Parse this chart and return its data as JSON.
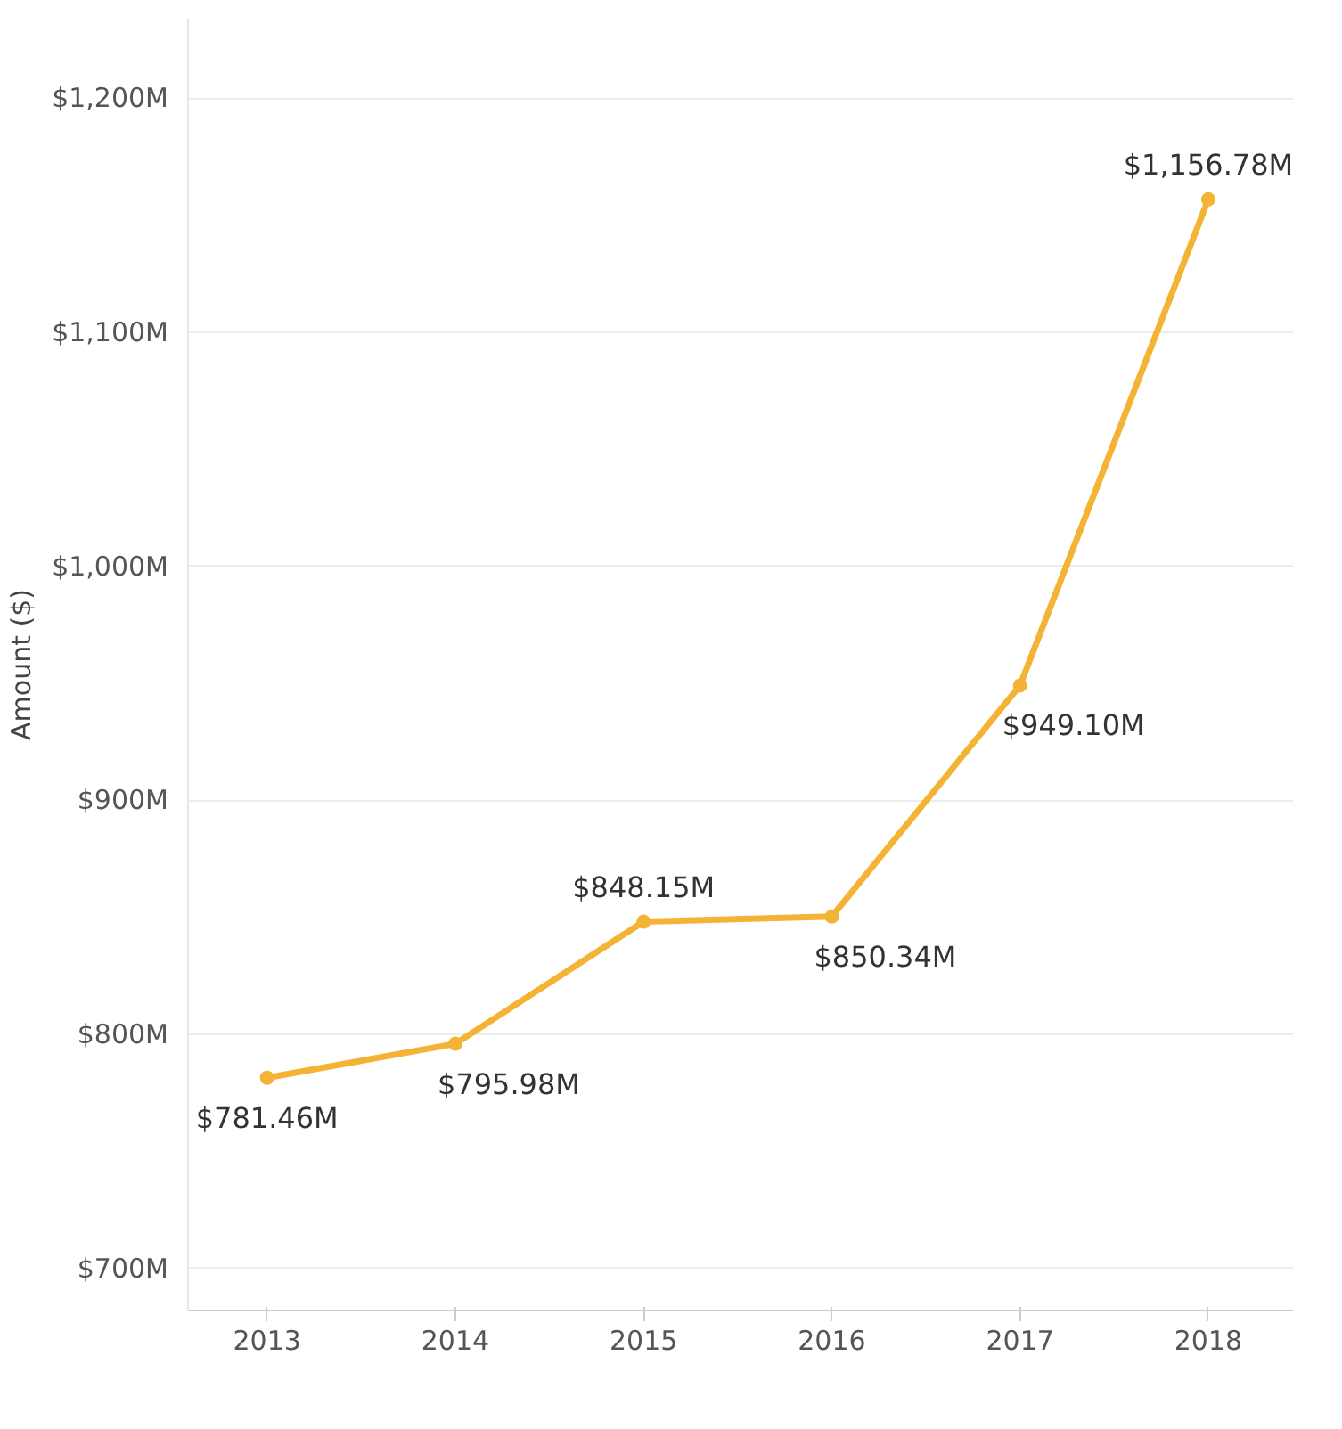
{
  "chart_data": {
    "type": "line",
    "ylabel": "Amount ($)",
    "categories": [
      "2013",
      "2014",
      "2015",
      "2016",
      "2017",
      "2018"
    ],
    "series": [
      {
        "color": "#f5b335",
        "values": [
          781.46,
          795.98,
          848.15,
          850.34,
          949.1,
          1156.78
        ],
        "value_labels": [
          "$781.46M",
          "$795.98M",
          "$848.15M",
          "$850.34M",
          "$949.10M",
          "$1,156.78M"
        ]
      }
    ],
    "ylim": [
      682,
      1234
    ],
    "yticks": [
      {
        "value": 700,
        "label": "$700M"
      },
      {
        "value": 800,
        "label": "$800M"
      },
      {
        "value": 900,
        "label": "$900M"
      },
      {
        "value": 1000,
        "label": "$1,000M"
      },
      {
        "value": 1100,
        "label": "$1,100M"
      },
      {
        "value": 1200,
        "label": "$1,200M"
      }
    ],
    "grid": "y",
    "marker": "circle",
    "line_style": "solid"
  }
}
